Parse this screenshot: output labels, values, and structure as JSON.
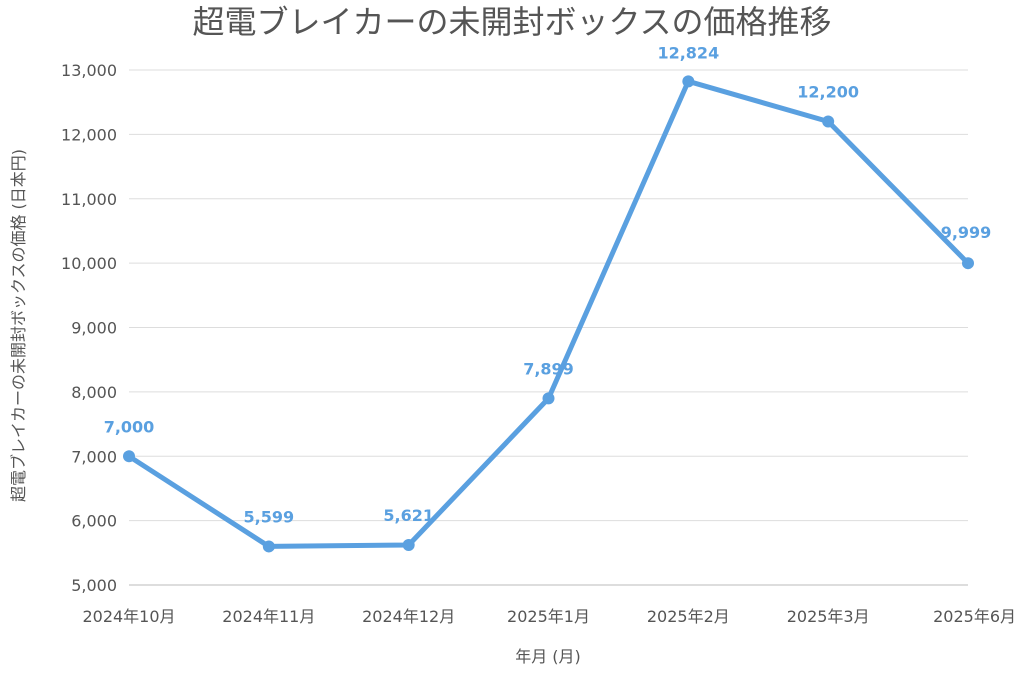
{
  "chart_data": {
    "type": "line",
    "title": "超電ブレイカーの未開封ボックスの価格推移",
    "xlabel": "年月 (月)",
    "ylabel": "超電ブレイカーの未開封ボックスの価格 (日本円)",
    "categories": [
      "2024年10月",
      "2024年11月",
      "2024年12月",
      "2025年1月",
      "2025年2月",
      "2025年3月",
      "2025年6月"
    ],
    "series": [
      {
        "values": [
          7000,
          5599,
          5621,
          7899,
          12824,
          12200,
          9999
        ],
        "data_labels": [
          "7,000",
          "5,599",
          "5,621",
          "7,899",
          "12,824",
          "12,200",
          "9,999"
        ],
        "color": "#5aa0e0"
      }
    ],
    "ylim": [
      5000,
      13000
    ],
    "yticks": [
      5000,
      6000,
      7000,
      8000,
      9000,
      10000,
      11000,
      12000,
      13000
    ],
    "ytick_labels": [
      "5,000",
      "6,000",
      "7,000",
      "8,000",
      "9,000",
      "10,000",
      "11,000",
      "12,000",
      "13,000"
    ],
    "grid": true,
    "legend": "none"
  }
}
